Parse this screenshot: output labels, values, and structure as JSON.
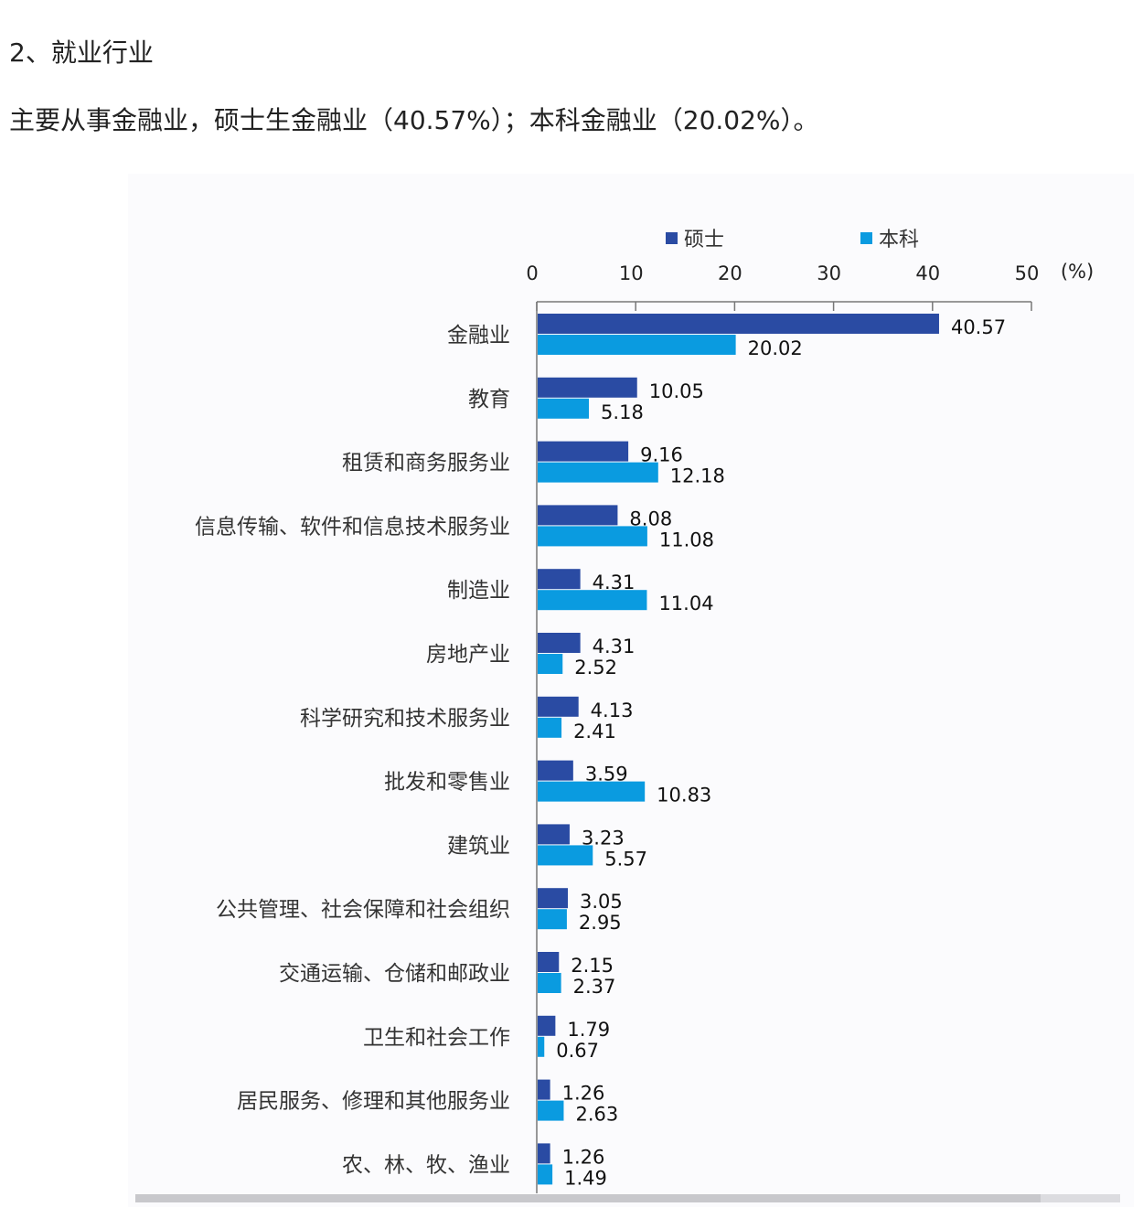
{
  "article": {
    "heading": "2、就业行业",
    "summary": "主要从事金融业，硕士生金融业（40.57%）；本科金融业（20.02%）。"
  },
  "chart_data": {
    "type": "bar",
    "orientation": "horizontal",
    "title": "",
    "xlabel": "",
    "ylabel": "",
    "unit_label": "(%)",
    "xlim": [
      0,
      50
    ],
    "xticks": [
      "0",
      "10",
      "20",
      "30",
      "40",
      "50"
    ],
    "legend_placement": "top",
    "grid": false,
    "categories": [
      "金融业",
      "教育",
      "租赁和商务服务业",
      "信息传输、软件和信息技术服务业",
      "制造业",
      "房地产业",
      "科学研究和技术服务业",
      "批发和零售业",
      "建筑业",
      "公共管理、社会保障和社会组织",
      "交通运输、仓储和邮政业",
      "卫生和社会工作",
      "居民服务、修理和其他服务业",
      "农、林、牧、渔业"
    ],
    "series": [
      {
        "name": "硕士",
        "color": "#2a4ba3",
        "values": [
          40.57,
          10.05,
          9.16,
          8.08,
          4.31,
          4.31,
          4.13,
          3.59,
          3.23,
          3.05,
          2.15,
          1.79,
          1.26,
          1.26
        ],
        "labels": [
          "40.57",
          "10.05",
          "9.16",
          "8.08",
          "4.31",
          "4.31",
          "4.13",
          "3.59",
          "3.23",
          "3.05",
          "2.15",
          "1.79",
          "1.26",
          "1.26"
        ]
      },
      {
        "name": "本科",
        "color": "#0a9be0",
        "values": [
          20.02,
          5.18,
          12.18,
          11.08,
          11.04,
          2.52,
          2.41,
          10.83,
          5.57,
          2.95,
          2.37,
          0.67,
          2.63,
          1.49
        ],
        "labels": [
          "20.02",
          "5.18",
          "12.18",
          "11.08",
          "11.04",
          "2.52",
          "2.41",
          "10.83",
          "5.57",
          "2.95",
          "2.37",
          "0.67",
          "2.63",
          "1.49"
        ]
      }
    ]
  }
}
